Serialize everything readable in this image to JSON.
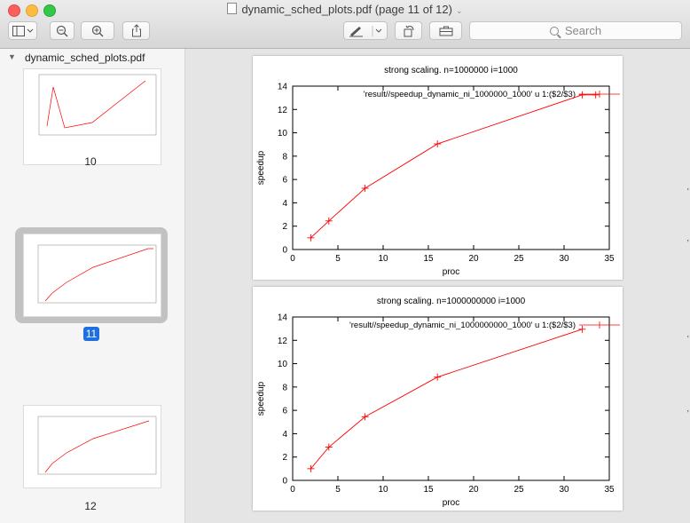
{
  "window": {
    "title": "dynamic_sched_plots.pdf (page 11 of 12)"
  },
  "toolbar": {
    "search_placeholder": "Search",
    "icons": [
      "sidebar-icon",
      "zoom-out-icon",
      "zoom-in-icon",
      "share-icon",
      "markup-icon",
      "rotate-icon",
      "toolbox-icon"
    ]
  },
  "sidebar": {
    "doc_name": "dynamic_sched_plots.pdf",
    "thumbnails": [
      {
        "label": "10",
        "selected": false
      },
      {
        "label": "11",
        "selected": true
      },
      {
        "label": "12",
        "selected": false
      }
    ]
  },
  "colors": {
    "accent": "#1e6fe0",
    "series": "#ff0000"
  },
  "chart_data": [
    {
      "type": "line",
      "title": "strong scaling. n=1000000 i=1000",
      "xlabel": "proc",
      "ylabel": "speedup",
      "xlim": [
        0,
        35
      ],
      "ylim": [
        0,
        14
      ],
      "xticks": [
        "0",
        "5",
        "10",
        "15",
        "20",
        "25",
        "30",
        "35"
      ],
      "yticks": [
        "0",
        "2",
        "4",
        "6",
        "8",
        "10",
        "12",
        "14"
      ],
      "legend_placement": "top-right",
      "series": [
        {
          "name": "'result//speedup_dynamic_ni_1000000_1000' u 1:($2/$3)",
          "x": [
            2,
            4,
            8,
            16,
            32,
            33.5
          ],
          "y": [
            1,
            2.45,
            5.25,
            9.05,
            13.25,
            13.25
          ]
        }
      ]
    },
    {
      "type": "line",
      "title": "strong scaling. n=1000000000 i=1000",
      "xlabel": "proc",
      "ylabel": "speedup",
      "xlim": [
        0,
        35
      ],
      "ylim": [
        0,
        14
      ],
      "xticks": [
        "0",
        "5",
        "10",
        "15",
        "20",
        "25",
        "30",
        "35"
      ],
      "yticks": [
        "0",
        "2",
        "4",
        "6",
        "8",
        "10",
        "12",
        "14"
      ],
      "legend_placement": "top-right",
      "series": [
        {
          "name": "'result//speedup_dynamic_ni_1000000000_1000' u 1:($2/$3)",
          "x": [
            2,
            4,
            8,
            16,
            32
          ],
          "y": [
            1,
            2.85,
            5.45,
            8.85,
            12.95
          ]
        }
      ]
    }
  ]
}
